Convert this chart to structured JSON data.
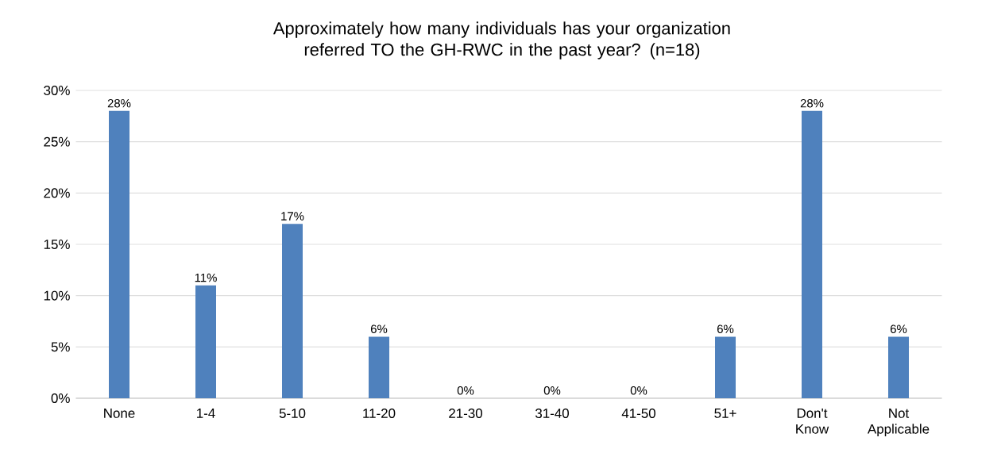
{
  "chart_data": {
    "type": "bar",
    "title": "Approximately how many individuals has your organization referred TO the GH-RWC in the past year? (n=18)",
    "categories": [
      "None",
      "1-4",
      "5-10",
      "11-20",
      "21-30",
      "31-40",
      "41-50",
      "51+",
      "Don't Know",
      "Not Applicable"
    ],
    "values": [
      28,
      11,
      17,
      6,
      0,
      0,
      0,
      6,
      28,
      6
    ],
    "value_labels": [
      "28%",
      "11%",
      "17%",
      "6%",
      "0%",
      "0%",
      "0%",
      "6%",
      "28%",
      "6%"
    ],
    "color": "#4f81bd",
    "ylim": [
      0,
      30
    ],
    "yticks": [
      {
        "value": 0,
        "label": "0%"
      },
      {
        "value": 5,
        "label": "5%"
      },
      {
        "value": 10,
        "label": "10%"
      },
      {
        "value": 15,
        "label": "15%"
      },
      {
        "value": 20,
        "label": "20%"
      },
      {
        "value": 25,
        "label": "25%"
      },
      {
        "value": 30,
        "label": "30%"
      }
    ],
    "grid": "y"
  }
}
